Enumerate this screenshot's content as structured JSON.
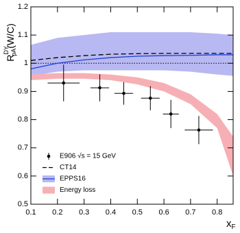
{
  "chart_data": {
    "type": "physics-plot",
    "x_label": {
      "base": "x",
      "sub": "F"
    },
    "y_label": {
      "base": "R",
      "sup": "DY",
      "sub": "pA",
      "suffix": "(W/C)"
    },
    "xlim": [
      0.1,
      0.86
    ],
    "ylim": [
      0.5,
      1.2
    ],
    "xticks": [
      0.1,
      0.2,
      0.3,
      0.4,
      0.5,
      0.6,
      0.7,
      0.8
    ],
    "yticks": [
      0.5,
      0.6,
      0.7,
      0.8,
      0.9,
      1,
      1.1,
      1.2
    ],
    "reference_line": 1,
    "series": [
      {
        "name": "E906 √s = 15 GeV",
        "kind": "points",
        "color": "#000000",
        "x": [
          0.223,
          0.359,
          0.449,
          0.549,
          0.626,
          0.731
        ],
        "values": [
          0.93,
          0.913,
          0.893,
          0.876,
          0.82,
          0.763
        ],
        "y_err": [
          0.065,
          0.048,
          0.04,
          0.043,
          0.05,
          0.05
        ],
        "x_err": [
          0.06,
          0.035,
          0.035,
          0.035,
          0.03,
          0.053
        ]
      },
      {
        "name": "CT14",
        "kind": "line",
        "dash": true,
        "color": "#000000",
        "x": [
          0.1,
          0.2,
          0.3,
          0.4,
          0.5,
          0.6,
          0.7,
          0.8,
          0.86
        ],
        "values": [
          1.01,
          1.02,
          1.027,
          1.032,
          1.034,
          1.035,
          1.035,
          1.035,
          1.035
        ]
      },
      {
        "name": "EPPS16",
        "kind": "line-band",
        "color": "#1a3fd8",
        "band_color": "#b8b8f2",
        "x": [
          0.1,
          0.2,
          0.3,
          0.4,
          0.5,
          0.6,
          0.7,
          0.8,
          0.86
        ],
        "values": [
          0.98,
          1.0,
          1.012,
          1.02,
          1.025,
          1.027,
          1.028,
          1.03,
          1.03
        ],
        "lower": [
          0.955,
          0.97,
          0.975,
          0.975,
          0.975,
          0.975,
          0.97,
          0.96,
          0.955
        ],
        "upper": [
          1.065,
          1.09,
          1.1,
          1.11,
          1.11,
          1.11,
          1.11,
          1.105,
          1.1
        ]
      },
      {
        "name": "Energy loss",
        "kind": "band",
        "band_color": "#f6b0b5",
        "x": [
          0.1,
          0.2,
          0.3,
          0.4,
          0.5,
          0.6,
          0.7,
          0.8,
          0.86
        ],
        "lower": [
          0.94,
          0.945,
          0.945,
          0.94,
          0.925,
          0.9,
          0.855,
          0.77,
          0.6
        ],
        "upper": [
          0.96,
          0.965,
          0.965,
          0.96,
          0.95,
          0.93,
          0.89,
          0.82,
          0.74
        ]
      }
    ]
  }
}
